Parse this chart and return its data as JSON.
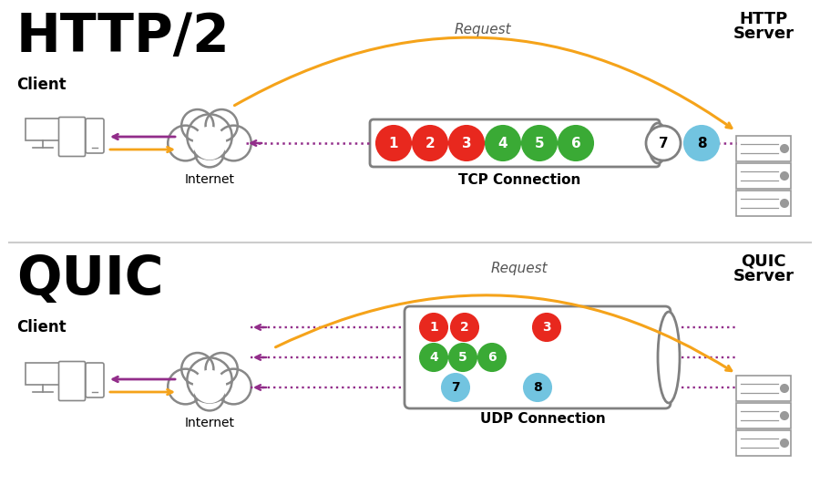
{
  "bg_color": "#ffffff",
  "top_title": "HTTP/2",
  "top_client_label": "Client",
  "top_server_label": "HTTP\nServer",
  "top_connection_label": "TCP Connection",
  "top_request_label": "Request",
  "bottom_title": "QUIC",
  "bottom_client_label": "Client",
  "bottom_server_label": "QUIC\nServer",
  "bottom_connection_label": "UDP Connection",
  "bottom_request_label": "Request",
  "internet_label": "Internet",
  "red_color": "#e8281e",
  "green_color": "#3aaa35",
  "blue_color": "#72c4e0",
  "purple_color": "#922d8a",
  "orange_color": "#f5a31a",
  "gray_color": "#808080",
  "light_gray": "#aaaaaa",
  "dark_color": "#333333",
  "divider_color": "#cccccc"
}
